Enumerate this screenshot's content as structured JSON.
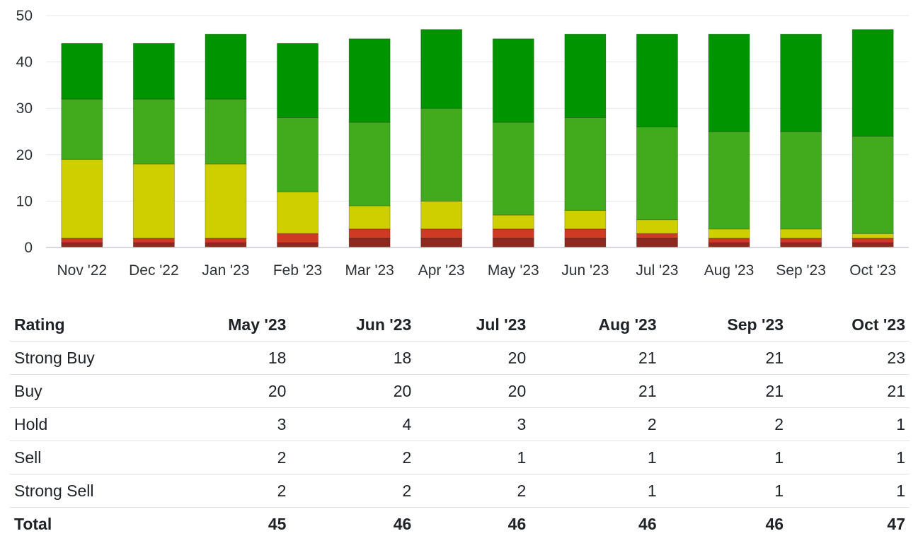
{
  "chart_data": {
    "type": "bar",
    "stacked": true,
    "categories": [
      "Nov '22",
      "Dec '22",
      "Jan '23",
      "Feb '23",
      "Mar '23",
      "Apr '23",
      "May '23",
      "Jun '23",
      "Jul '23",
      "Aug '23",
      "Sep '23",
      "Oct '23"
    ],
    "series": [
      {
        "name": "Strong Sell",
        "color": "#8b2a1f",
        "values": [
          1,
          1,
          1,
          1,
          2,
          2,
          2,
          2,
          2,
          1,
          1,
          1
        ]
      },
      {
        "name": "Sell",
        "color": "#cf3a24",
        "values": [
          1,
          1,
          1,
          2,
          2,
          2,
          2,
          2,
          1,
          1,
          1,
          1
        ]
      },
      {
        "name": "Hold",
        "color": "#cfcf00",
        "values": [
          17,
          16,
          16,
          9,
          5,
          6,
          3,
          4,
          3,
          2,
          2,
          1
        ]
      },
      {
        "name": "Buy",
        "color": "#41ab1d",
        "values": [
          13,
          14,
          14,
          16,
          18,
          20,
          20,
          20,
          20,
          21,
          21,
          21
        ]
      },
      {
        "name": "Strong Buy",
        "color": "#009400",
        "values": [
          12,
          12,
          14,
          16,
          18,
          17,
          18,
          18,
          20,
          21,
          21,
          23
        ]
      }
    ],
    "y_ticks": [
      0,
      10,
      20,
      30,
      40,
      50
    ],
    "ylim": [
      0,
      50
    ],
    "title": "",
    "xlabel": "",
    "ylabel": "",
    "grid": true
  },
  "table": {
    "headers": [
      "Rating",
      "May '23",
      "Jun '23",
      "Jul '23",
      "Aug '23",
      "Sep '23",
      "Oct '23"
    ],
    "rows": [
      {
        "label": "Strong Buy",
        "values": [
          "18",
          "18",
          "20",
          "21",
          "21",
          "23"
        ]
      },
      {
        "label": "Buy",
        "values": [
          "20",
          "20",
          "20",
          "21",
          "21",
          "21"
        ]
      },
      {
        "label": "Hold",
        "values": [
          "3",
          "4",
          "3",
          "2",
          "2",
          "1"
        ]
      },
      {
        "label": "Sell",
        "values": [
          "2",
          "2",
          "1",
          "1",
          "1",
          "1"
        ]
      },
      {
        "label": "Strong Sell",
        "values": [
          "2",
          "2",
          "2",
          "1",
          "1",
          "1"
        ]
      }
    ],
    "total": {
      "label": "Total",
      "values": [
        "45",
        "46",
        "46",
        "46",
        "46",
        "47"
      ]
    }
  }
}
